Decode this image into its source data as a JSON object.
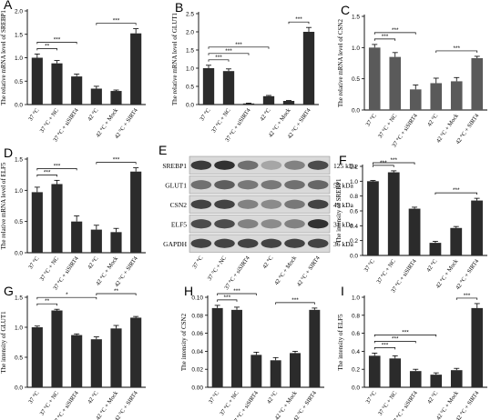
{
  "chart_data": [
    {
      "letter": "A",
      "type": "bar",
      "ylabel": "The relative mRNA level of SREBP1",
      "categories": [
        "37 °C",
        "37 °C + NC",
        "37 °C + siSIRT4",
        "42 °C",
        "42 °C + Mock",
        "42 °C + SIRT4"
      ],
      "values": [
        1.0,
        0.88,
        0.6,
        0.34,
        0.29,
        1.52
      ],
      "errors": [
        0.08,
        0.06,
        0.05,
        0.05,
        0.02,
        0.1
      ],
      "ylim": [
        0,
        2.0
      ],
      "ticks": [
        0,
        0.5,
        1.0,
        1.5,
        2.0
      ],
      "tick_labels": [
        "0.0",
        "0.5",
        "1.0",
        "1.5",
        "2.0"
      ],
      "bar_color": "#2b2b2b",
      "brackets": [
        {
          "from": 0,
          "to": 1,
          "label": "**"
        },
        {
          "from": 0,
          "to": 2,
          "label": "***"
        },
        {
          "from": 3,
          "to": 5,
          "label": "***"
        }
      ]
    },
    {
      "letter": "B",
      "type": "bar",
      "ylabel": "The relative mRNA level of GLUT1",
      "categories": [
        "37 °C",
        "37 °C + NC",
        "37 °C + siSIRT4",
        "42 °C",
        "42 °C + Mock",
        "42 °C + SIRT4"
      ],
      "values": [
        1.0,
        0.92,
        0.03,
        0.23,
        0.1,
        2.0
      ],
      "errors": [
        0.08,
        0.06,
        0.01,
        0.02,
        0.01,
        0.12
      ],
      "ylim": [
        0,
        2.5
      ],
      "ticks": [
        0,
        0.5,
        1.0,
        1.5,
        2.0,
        2.5
      ],
      "tick_labels": [
        "0.0",
        "0.5",
        "1.0",
        "1.5",
        "2.0",
        "2.5"
      ],
      "bar_color": "#2b2b2b",
      "brackets": [
        {
          "from": 0,
          "to": 1,
          "label": "***"
        },
        {
          "from": 0,
          "to": 2,
          "label": "***"
        },
        {
          "from": 0,
          "to": 3,
          "label": "***"
        },
        {
          "from": 4,
          "to": 5,
          "label": "***"
        }
      ]
    },
    {
      "letter": "C",
      "type": "bar",
      "ylabel": "The relative mRNA level of CSN2",
      "categories": [
        "37 °C",
        "37 °C + NC",
        "37 °C + siSIRT4",
        "42 °C",
        "42 °C + Mock",
        "42 °C + SIRT4"
      ],
      "values": [
        1.0,
        0.85,
        0.33,
        0.43,
        0.46,
        0.83
      ],
      "errors": [
        0.05,
        0.07,
        0.07,
        0.08,
        0.06,
        0.03
      ],
      "ylim": [
        0,
        1.5
      ],
      "ticks": [
        0,
        0.5,
        1.0,
        1.5
      ],
      "tick_labels": [
        "0.0",
        "0.5",
        "1.0",
        "1.5"
      ],
      "bar_color": "#5a5a5a",
      "brackets": [
        {
          "from": 0,
          "to": 1,
          "label": "***"
        },
        {
          "from": 0,
          "to": 2,
          "label": "***"
        },
        {
          "from": 3,
          "to": 5,
          "label": "***"
        }
      ]
    },
    {
      "letter": "D",
      "type": "bar",
      "ylabel": "The relative mRNA level of ELF5",
      "categories": [
        "37 °C",
        "37 °C + NC",
        "37 °C + siSIRT4",
        "42 °C",
        "42 °C + Mock",
        "42 °C + SIRT4"
      ],
      "values": [
        0.97,
        1.1,
        0.5,
        0.37,
        0.33,
        1.3
      ],
      "errors": [
        0.08,
        0.06,
        0.09,
        0.07,
        0.06,
        0.06
      ],
      "ylim": [
        0,
        1.5
      ],
      "ticks": [
        0,
        0.5,
        1.0,
        1.5
      ],
      "tick_labels": [
        "0.0",
        "0.5",
        "1.0",
        "1.5"
      ],
      "bar_color": "#2b2b2b",
      "brackets": [
        {
          "from": 0,
          "to": 1,
          "label": "***"
        },
        {
          "from": 0,
          "to": 2,
          "label": "***"
        },
        {
          "from": 3,
          "to": 5,
          "label": "***"
        }
      ]
    },
    {
      "letter": "F",
      "type": "bar",
      "ylabel": "The intensity of SREBP1",
      "categories": [
        "37 °C",
        "37 °C + NC",
        "37 °C + siSIRT4",
        "42 °C",
        "42 °C + Mock",
        "42 °C + SIRT4"
      ],
      "values": [
        1.0,
        1.12,
        0.63,
        0.17,
        0.37,
        0.74
      ],
      "errors": [
        0.01,
        0.02,
        0.02,
        0.02,
        0.02,
        0.03
      ],
      "ylim": [
        0,
        1.2
      ],
      "ticks": [
        0,
        0.2,
        0.4,
        0.6,
        0.8,
        1.0,
        1.2
      ],
      "tick_labels": [
        "0.0",
        "0.2",
        "0.4",
        "0.6",
        "0.8",
        "1.0",
        "1.2"
      ],
      "bar_color": "#2b2b2b",
      "brackets": [
        {
          "from": 0,
          "to": 1,
          "label": "***"
        },
        {
          "from": 0,
          "to": 2,
          "label": "***"
        },
        {
          "from": 3,
          "to": 5,
          "label": "***"
        }
      ]
    },
    {
      "letter": "G",
      "type": "bar",
      "ylabel": "The intensity of GLUT1",
      "categories": [
        "37 °C",
        "37 °C + NC",
        "37 °C + siSIRT4",
        "42 °C",
        "42 °C + Mock",
        "42 °C + SIRT4"
      ],
      "values": [
        1.0,
        1.28,
        0.87,
        0.8,
        0.98,
        1.16
      ],
      "errors": [
        0.02,
        0.02,
        0.02,
        0.04,
        0.05,
        0.02
      ],
      "ylim": [
        0,
        1.5
      ],
      "ticks": [
        0,
        0.5,
        1.0,
        1.5
      ],
      "tick_labels": [
        "0.0",
        "0.5",
        "1.0",
        "1.5"
      ],
      "bar_color": "#2b2b2b",
      "brackets": [
        {
          "from": 0,
          "to": 1,
          "label": "**"
        },
        {
          "from": 0,
          "to": 3,
          "label": "*"
        },
        {
          "from": 3,
          "to": 5,
          "label": "**"
        }
      ]
    },
    {
      "letter": "H",
      "type": "bar",
      "ylabel": "The intensity of CSN2",
      "categories": [
        "37 °C",
        "37 °C + NC",
        "37 °C + siSIRT4",
        "42 °C",
        "42 °C + Mock",
        "42 °C + SIRT4"
      ],
      "values": [
        0.088,
        0.086,
        0.036,
        0.03,
        0.038,
        0.086
      ],
      "errors": [
        0.003,
        0.003,
        0.003,
        0.003,
        0.002,
        0.002
      ],
      "ylim": [
        0,
        0.1
      ],
      "ticks": [
        0,
        0.02,
        0.04,
        0.06,
        0.08,
        0.1
      ],
      "tick_labels": [
        "0.00",
        "0.02",
        "0.04",
        "0.06",
        "0.08",
        "0.10"
      ],
      "bar_color": "#2b2b2b",
      "brackets": [
        {
          "from": 0,
          "to": 1,
          "label": "***"
        },
        {
          "from": 0,
          "to": 2,
          "label": "***"
        },
        {
          "from": 3,
          "to": 5,
          "label": "***"
        }
      ]
    },
    {
      "letter": "I",
      "type": "bar",
      "ylabel": "The intensity of ELF5",
      "categories": [
        "37 °C",
        "37 °C + NC",
        "37 °C + siSIRT4",
        "42 °C",
        "42 °C + Mock",
        "42 °C + SIRT4"
      ],
      "values": [
        0.35,
        0.32,
        0.18,
        0.14,
        0.19,
        0.88
      ],
      "errors": [
        0.03,
        0.03,
        0.02,
        0.02,
        0.02,
        0.05
      ],
      "ylim": [
        0,
        1.0
      ],
      "ticks": [
        0,
        0.2,
        0.4,
        0.6,
        0.8,
        1.0
      ],
      "tick_labels": [
        "0.0",
        "0.2",
        "0.4",
        "0.6",
        "0.8",
        "1.0"
      ],
      "bar_color": "#2b2b2b",
      "brackets": [
        {
          "from": 0,
          "to": 1,
          "label": "***"
        },
        {
          "from": 0,
          "to": 2,
          "label": "***"
        },
        {
          "from": 0,
          "to": 3,
          "label": "***"
        },
        {
          "from": 4,
          "to": 5,
          "label": "***"
        }
      ]
    }
  ],
  "blot": {
    "letter": "E",
    "rows": [
      {
        "name": "SREBP1",
        "size": "125 kDa"
      },
      {
        "name": "GLUT1",
        "size": "55 kDa"
      },
      {
        "name": "CSN2",
        "size": "45 kDa"
      },
      {
        "name": "ELF5",
        "size": "31 kDa"
      },
      {
        "name": "GAPDH",
        "size": "36 kDa"
      }
    ],
    "lanes": [
      "37 °C",
      "37 °C + NC",
      "37 °C + siSIRT4",
      "42 °C",
      "42 °C + Mock",
      "42 °C + SIRT4"
    ],
    "band_intensity": [
      [
        0.9,
        0.95,
        0.6,
        0.3,
        0.5,
        0.8
      ],
      [
        0.6,
        0.7,
        0.55,
        0.55,
        0.6,
        0.65
      ],
      [
        0.85,
        0.85,
        0.5,
        0.45,
        0.55,
        0.85
      ],
      [
        0.8,
        0.8,
        0.5,
        0.45,
        0.5,
        0.95
      ],
      [
        0.85,
        0.85,
        0.85,
        0.85,
        0.85,
        0.85
      ]
    ]
  }
}
